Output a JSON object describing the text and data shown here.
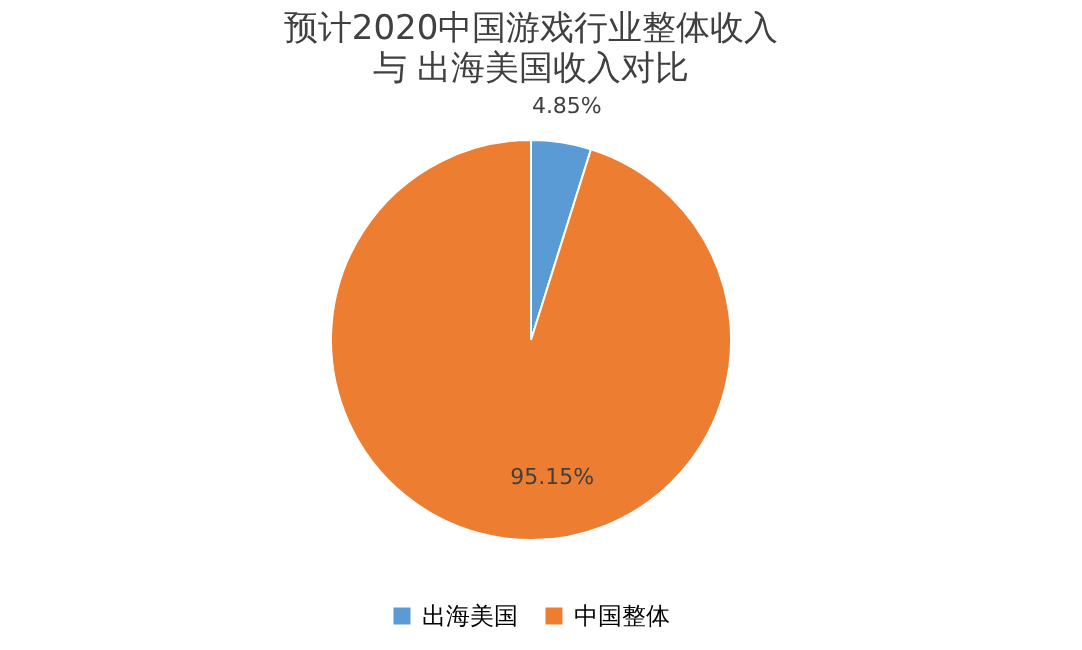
{
  "chart_data": {
    "type": "pie",
    "title": "预计2020中国游戏行业整体收入",
    "subtitle": "与 出海美国收入对比",
    "categories": [
      "出海美国",
      "中国整体"
    ],
    "values": [
      4.85,
      95.15
    ],
    "colors": [
      "#5b9bd5",
      "#ed7d31"
    ],
    "value_labels": [
      "4.85%",
      "95.15%"
    ],
    "legend": "bottom"
  }
}
